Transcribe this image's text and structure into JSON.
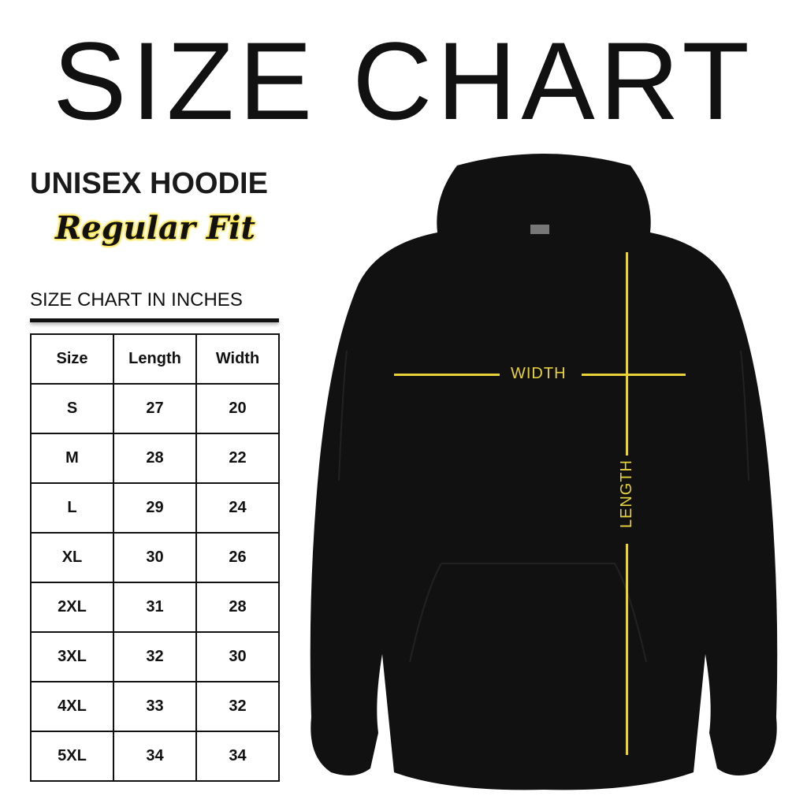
{
  "title": "SIZE CHART",
  "product": "UNISEX HOODIE",
  "fit": "Regular Fit",
  "unit_heading": "SIZE CHART IN INCHES",
  "table": {
    "headers": [
      "Size",
      "Length",
      "Width"
    ],
    "rows": [
      [
        "S",
        "27",
        "20"
      ],
      [
        "M",
        "28",
        "22"
      ],
      [
        "L",
        "29",
        "24"
      ],
      [
        "XL",
        "30",
        "26"
      ],
      [
        "2XL",
        "31",
        "28"
      ],
      [
        "3XL",
        "32",
        "30"
      ],
      [
        "4XL",
        "33",
        "32"
      ],
      [
        "5XL",
        "34",
        "34"
      ]
    ]
  },
  "diagram": {
    "width_label": "WIDTH",
    "length_label": "LENGTH",
    "marker_color": "#e8d23a",
    "garment_color": "#111111"
  }
}
